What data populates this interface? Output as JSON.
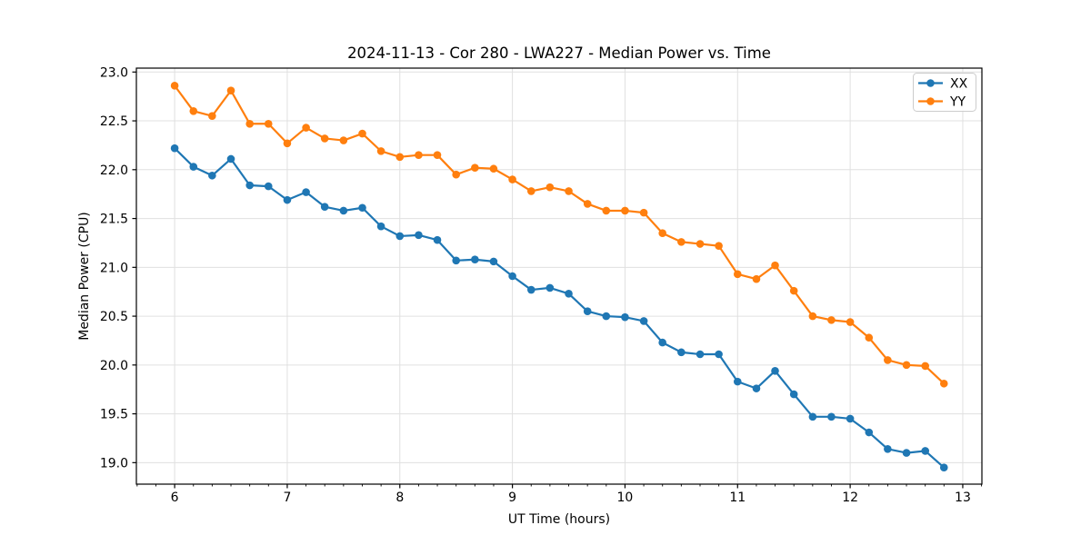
{
  "chart_data": {
    "type": "line",
    "title": "2024-11-13 - Cor 280 - LWA227 - Median Power vs. Time",
    "xlabel": "UT Time (hours)",
    "ylabel": "Median Power (CPU)",
    "xlim": [
      5.66,
      13.17
    ],
    "ylim": [
      18.78,
      23.04
    ],
    "xticks": [
      6,
      7,
      8,
      9,
      10,
      11,
      12,
      13
    ],
    "yticks": [
      19.0,
      19.5,
      20.0,
      20.5,
      21.0,
      21.5,
      22.0,
      22.5,
      23.0
    ],
    "x_minor_per_unit": 6,
    "grid": true,
    "legend_position": "upper right",
    "marker": "circle",
    "x": [
      6.0,
      6.167,
      6.333,
      6.5,
      6.667,
      6.833,
      7.0,
      7.167,
      7.333,
      7.5,
      7.667,
      7.833,
      8.0,
      8.167,
      8.333,
      8.5,
      8.667,
      8.833,
      9.0,
      9.167,
      9.333,
      9.5,
      9.667,
      9.833,
      10.0,
      10.167,
      10.333,
      10.5,
      10.667,
      10.833,
      11.0,
      11.167,
      11.333,
      11.5,
      11.667,
      11.833,
      12.0,
      12.167,
      12.333,
      12.5,
      12.667,
      12.833
    ],
    "series": [
      {
        "name": "XX",
        "color": "#1f77b4",
        "values": [
          22.22,
          22.03,
          21.94,
          22.11,
          21.84,
          21.83,
          21.69,
          21.77,
          21.62,
          21.58,
          21.61,
          21.42,
          21.32,
          21.33,
          21.28,
          21.07,
          21.08,
          21.06,
          20.91,
          20.77,
          20.79,
          20.73,
          20.55,
          20.5,
          20.49,
          20.45,
          20.23,
          20.13,
          20.11,
          20.11,
          19.83,
          19.76,
          19.94,
          19.7,
          19.47,
          19.47,
          19.45,
          19.31,
          19.14,
          19.1,
          19.12,
          18.95
        ]
      },
      {
        "name": "YY",
        "color": "#ff7f0e",
        "values": [
          22.86,
          22.6,
          22.55,
          22.81,
          22.47,
          22.47,
          22.27,
          22.43,
          22.32,
          22.3,
          22.37,
          22.19,
          22.13,
          22.15,
          22.15,
          21.95,
          22.02,
          22.01,
          21.9,
          21.78,
          21.82,
          21.78,
          21.65,
          21.58,
          21.58,
          21.56,
          21.35,
          21.26,
          21.24,
          21.22,
          20.93,
          20.88,
          21.02,
          20.76,
          20.5,
          20.46,
          20.44,
          20.28,
          20.05,
          20.0,
          19.99,
          19.81
        ]
      }
    ]
  },
  "colors": {
    "grid": "#e0e0e0",
    "spine": "#000000",
    "tick": "#000000",
    "legend_border": "#cccccc",
    "background": "#ffffff"
  }
}
